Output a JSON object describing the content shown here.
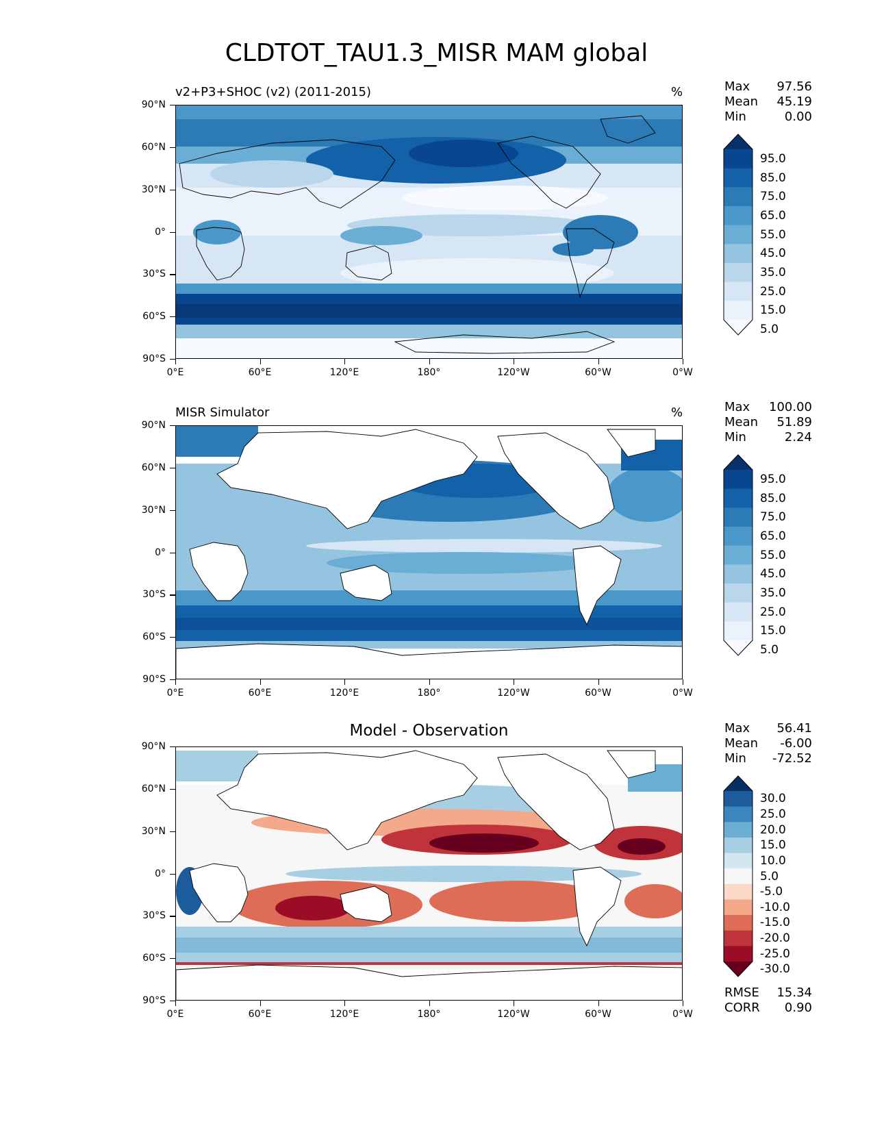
{
  "title": "CLDTOT_TAU1.3_MISR MAM global",
  "axes": {
    "lat_labels": [
      "90°N",
      "60°N",
      "30°N",
      "0°",
      "30°S",
      "60°S",
      "90°S"
    ],
    "lon_labels": [
      "0°E",
      "60°E",
      "120°E",
      "180°",
      "120°W",
      "60°W",
      "0°W"
    ]
  },
  "panels": [
    {
      "left_title": "v2+P3+SHOC (v2) (2011-2015)",
      "right_title": "%",
      "center_title": "",
      "stats": [
        {
          "label": "Max",
          "value": "97.56"
        },
        {
          "label": "Mean",
          "value": "45.19"
        },
        {
          "label": "Min",
          "value": "0.00"
        }
      ],
      "colorbar_levels": [
        "95.0",
        "85.0",
        "75.0",
        "65.0",
        "55.0",
        "45.0",
        "35.0",
        "25.0",
        "15.0",
        "5.0"
      ],
      "colors": [
        "#08306b",
        "#08468f",
        "#1361a9",
        "#2c7bb6",
        "#4a98c9",
        "#6aaed6",
        "#94c4df",
        "#bad6eb",
        "#d6e6f4",
        "#eaf3fb",
        "#f7fbff"
      ]
    },
    {
      "left_title": "MISR Simulator",
      "right_title": "%",
      "center_title": "",
      "stats": [
        {
          "label": "Max",
          "value": "100.00"
        },
        {
          "label": "Mean",
          "value": "51.89"
        },
        {
          "label": "Min",
          "value": "2.24"
        }
      ],
      "colorbar_levels": [
        "95.0",
        "85.0",
        "75.0",
        "65.0",
        "55.0",
        "45.0",
        "35.0",
        "25.0",
        "15.0",
        "5.0"
      ],
      "colors": [
        "#08306b",
        "#08468f",
        "#1361a9",
        "#2c7bb6",
        "#4a98c9",
        "#6aaed6",
        "#94c4df",
        "#bad6eb",
        "#d6e6f4",
        "#eaf3fb",
        "#f7fbff"
      ]
    },
    {
      "left_title": "",
      "right_title": "",
      "center_title": "Model - Observation",
      "stats": [
        {
          "label": "Max",
          "value": "56.41"
        },
        {
          "label": "Mean",
          "value": "-6.00"
        },
        {
          "label": "Min",
          "value": "-72.52"
        }
      ],
      "extra_stats": [
        {
          "label": "RMSE",
          "value": "15.34"
        },
        {
          "label": "CORR",
          "value": "0.90"
        }
      ],
      "colorbar_levels": [
        "30.0",
        "25.0",
        "20.0",
        "15.0",
        "10.0",
        "5.0",
        "-5.0",
        "-10.0",
        "-15.0",
        "-20.0",
        "-25.0",
        "-30.0"
      ],
      "colors": [
        "#053061",
        "#1c5c9c",
        "#3a86bd",
        "#6aaed2",
        "#a6cfe4",
        "#d4e6f0",
        "#f7f7f7",
        "#fbd9c8",
        "#f3a98a",
        "#dd6d57",
        "#c0333a",
        "#9b0c26",
        "#67001f"
      ]
    }
  ]
}
